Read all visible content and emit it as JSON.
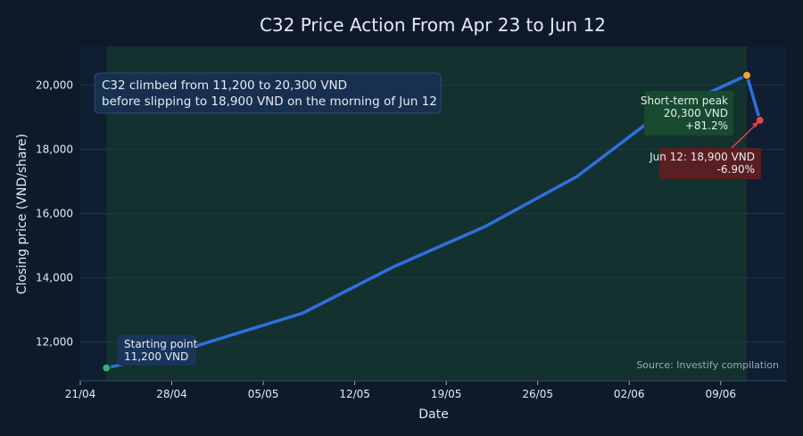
{
  "chart_data": {
    "type": "line",
    "title": "C32 Price Action From Apr 23 to Jun 12",
    "xlabel": "Date",
    "ylabel": "Closing price (VND/share)",
    "x_ticks": [
      "2025-04-21",
      "2025-04-28",
      "2025-05-05",
      "2025-05-12",
      "2025-05-19",
      "2025-05-26",
      "2025-06-02",
      "2025-06-09"
    ],
    "x_tick_labels": [
      "21/04",
      "28/04",
      "05/05",
      "12/05",
      "19/05",
      "26/05",
      "02/06",
      "09/06"
    ],
    "xlim": [
      "2025-04-21",
      "2025-06-14"
    ],
    "ylim": [
      10800,
      21200
    ],
    "y_ticks": [
      12000,
      14000,
      16000,
      18000,
      20000
    ],
    "y_tick_labels": [
      "12,000",
      "14,000",
      "16,000",
      "18,000",
      "20,000"
    ],
    "grid": true,
    "highlight_range": [
      "2025-04-23",
      "2025-06-11"
    ],
    "series": [
      {
        "name": "",
        "color": "#2f6fe0",
        "points": [
          {
            "x": "2025-04-23",
            "y": 11200
          },
          {
            "x": "2025-04-28",
            "y": 11650
          },
          {
            "x": "2025-05-08",
            "y": 12900
          },
          {
            "x": "2025-05-15",
            "y": 14350
          },
          {
            "x": "2025-05-22",
            "y": 15600
          },
          {
            "x": "2025-05-29",
            "y": 17150
          },
          {
            "x": "2025-06-04",
            "y": 19000
          },
          {
            "x": "2025-06-11",
            "y": 20300
          },
          {
            "x": "2025-06-12",
            "y": 18900
          }
        ]
      }
    ],
    "markers": [
      {
        "x": "2025-04-23",
        "y": 11200,
        "color": "#2bb673"
      },
      {
        "x": "2025-06-11",
        "y": 20300,
        "color": "#f2a531"
      },
      {
        "x": "2025-06-12",
        "y": 18900,
        "color": "#e8424c"
      }
    ],
    "annotations": {
      "summary": [
        "C32 climbed from 11,200 to 20,300 VND",
        "before slipping to 18,900 VND on the morning of Jun 12"
      ],
      "start": [
        "Starting point",
        "11,200 VND"
      ],
      "peak": [
        "Short-term peak",
        "20,300 VND",
        "+81.2%"
      ],
      "last": [
        "Jun 12: 18,900 VND",
        "-6.90%"
      ],
      "source": "Source: Investify compilation"
    },
    "colors": {
      "background": "#0e1a2b",
      "plot_background": "#101e31",
      "highlight": "#14382f",
      "grid": "#233650",
      "text": "#e6ebf2",
      "muted": "#9aa7b8",
      "summary_box": "#17304f",
      "start_box": "#1a355b",
      "peak_box": "#174a2e",
      "last_box": "#5a1f22"
    }
  }
}
